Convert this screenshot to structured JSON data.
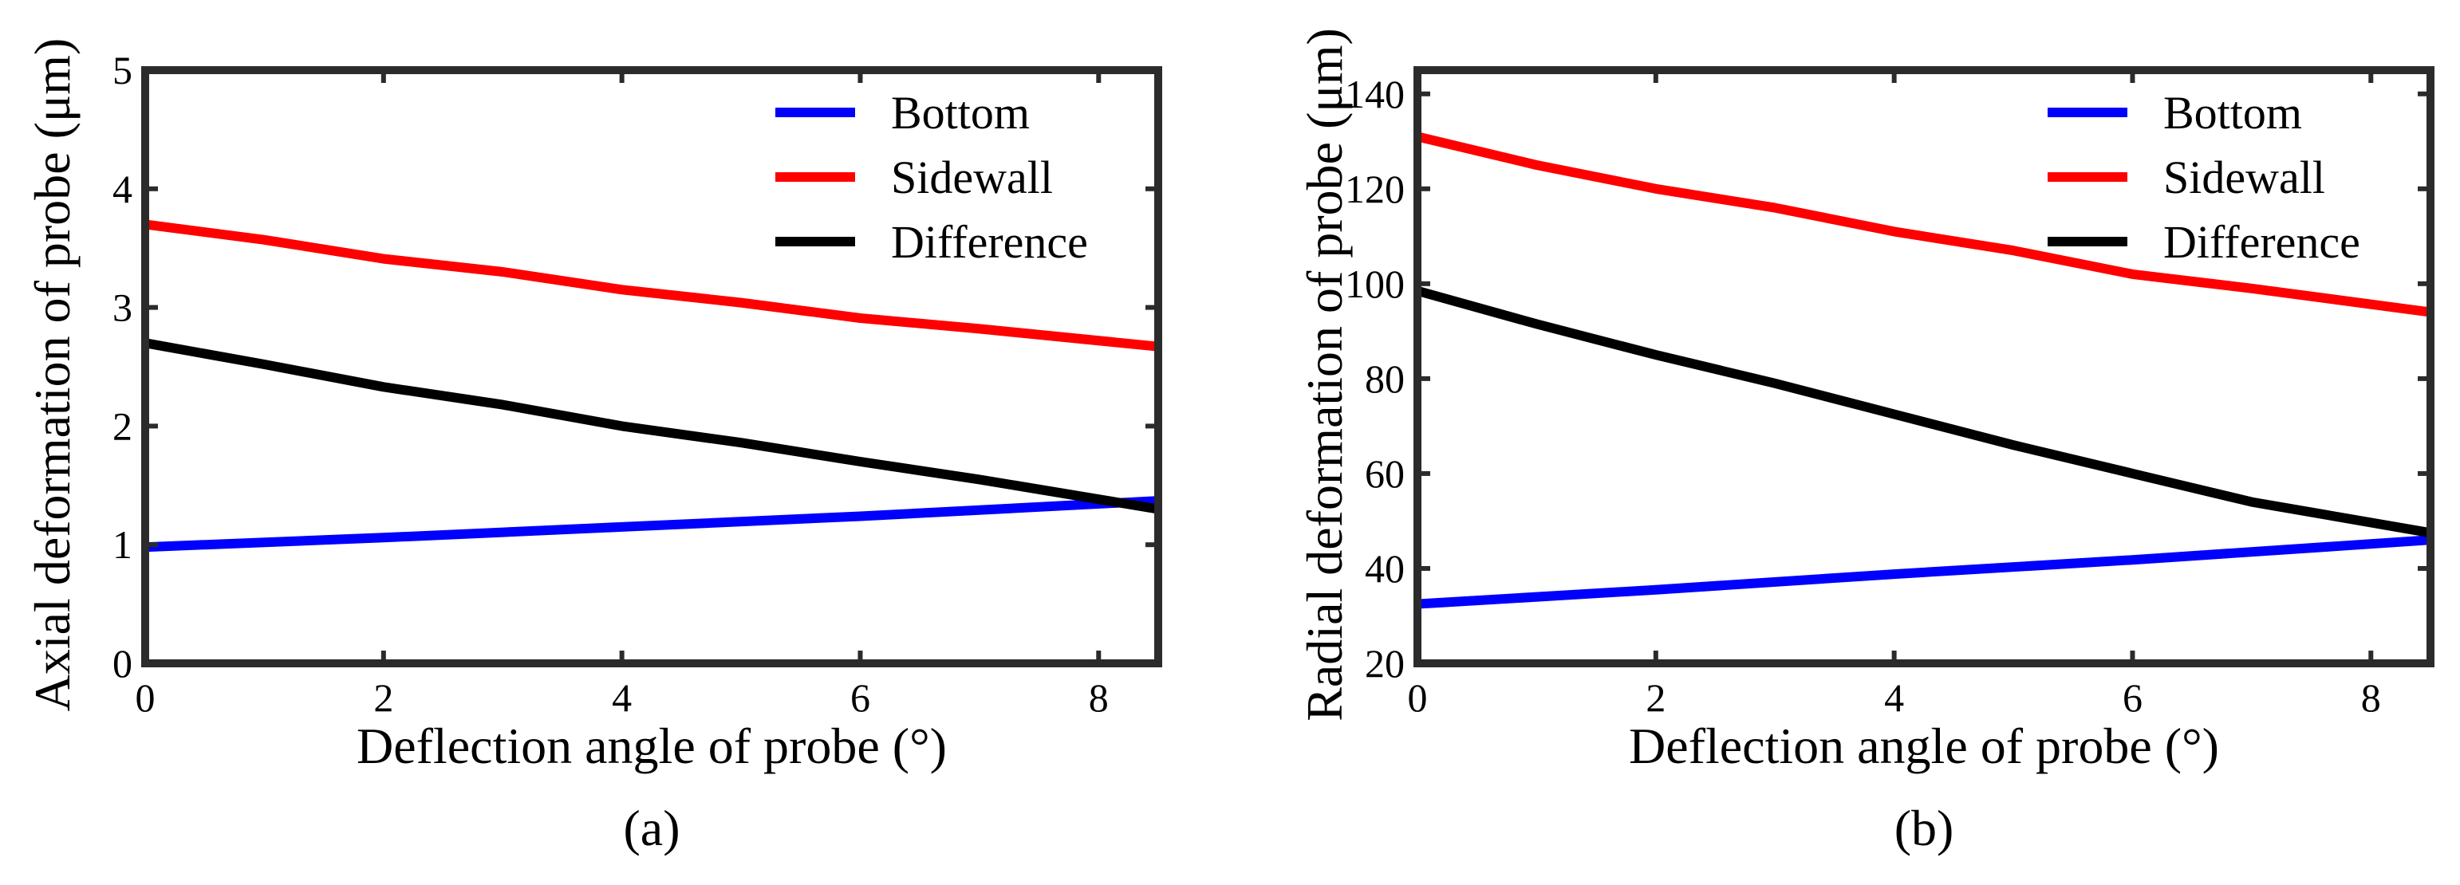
{
  "chart_data": [
    {
      "type": "line",
      "panel_label": "(a)",
      "xlabel": "Deflection angle of probe (°)",
      "ylabel": "Axial deformation of probe (μm)",
      "xlim": [
        0,
        8.5
      ],
      "ylim": [
        0,
        5
      ],
      "xticks": [
        0,
        2,
        4,
        6,
        8
      ],
      "yticks": [
        0,
        1,
        2,
        3,
        4,
        5
      ],
      "grid": false,
      "legend_position": "top-right",
      "series": [
        {
          "name": "Bottom",
          "color": "#0000ff",
          "x": [
            0,
            2,
            4,
            6,
            8.5
          ],
          "y": [
            0.98,
            1.06,
            1.15,
            1.24,
            1.37
          ]
        },
        {
          "name": "Sidewall",
          "color": "#ff0000",
          "x": [
            0,
            1,
            2,
            3,
            4,
            5,
            6,
            7,
            8.5
          ],
          "y": [
            3.7,
            3.57,
            3.41,
            3.3,
            3.15,
            3.04,
            2.91,
            2.82,
            2.67
          ]
        },
        {
          "name": "Difference",
          "color": "#000000",
          "x": [
            0,
            1,
            2,
            3,
            4,
            5,
            6,
            7,
            8.5
          ],
          "y": [
            2.7,
            2.52,
            2.33,
            2.18,
            2.0,
            1.86,
            1.7,
            1.55,
            1.3
          ]
        }
      ]
    },
    {
      "type": "line",
      "panel_label": "(b)",
      "xlabel": "Deflection angle of probe (°)",
      "ylabel": "Radial deformation of probe (μm)",
      "xlim": [
        0,
        8.5
      ],
      "ylim": [
        20,
        145
      ],
      "xticks": [
        0,
        2,
        4,
        6,
        8
      ],
      "yticks": [
        20,
        40,
        60,
        80,
        100,
        120,
        140
      ],
      "grid": false,
      "legend_position": "top-right",
      "series": [
        {
          "name": "Bottom",
          "color": "#0000ff",
          "x": [
            0,
            2,
            4,
            6,
            8.5
          ],
          "y": [
            32.5,
            35.5,
            38.8,
            41.8,
            46.0
          ]
        },
        {
          "name": "Sidewall",
          "color": "#ff0000",
          "x": [
            0,
            1,
            2,
            3,
            4,
            5,
            6,
            7,
            8.5
          ],
          "y": [
            131,
            125,
            120,
            116,
            111,
            107,
            102,
            99,
            94
          ]
        },
        {
          "name": "Difference",
          "color": "#000000",
          "x": [
            0,
            1,
            2,
            3,
            4,
            5,
            6,
            7,
            8.5
          ],
          "y": [
            98.5,
            91.5,
            85,
            79,
            72.5,
            66,
            60,
            54,
            47.5
          ]
        }
      ]
    }
  ]
}
